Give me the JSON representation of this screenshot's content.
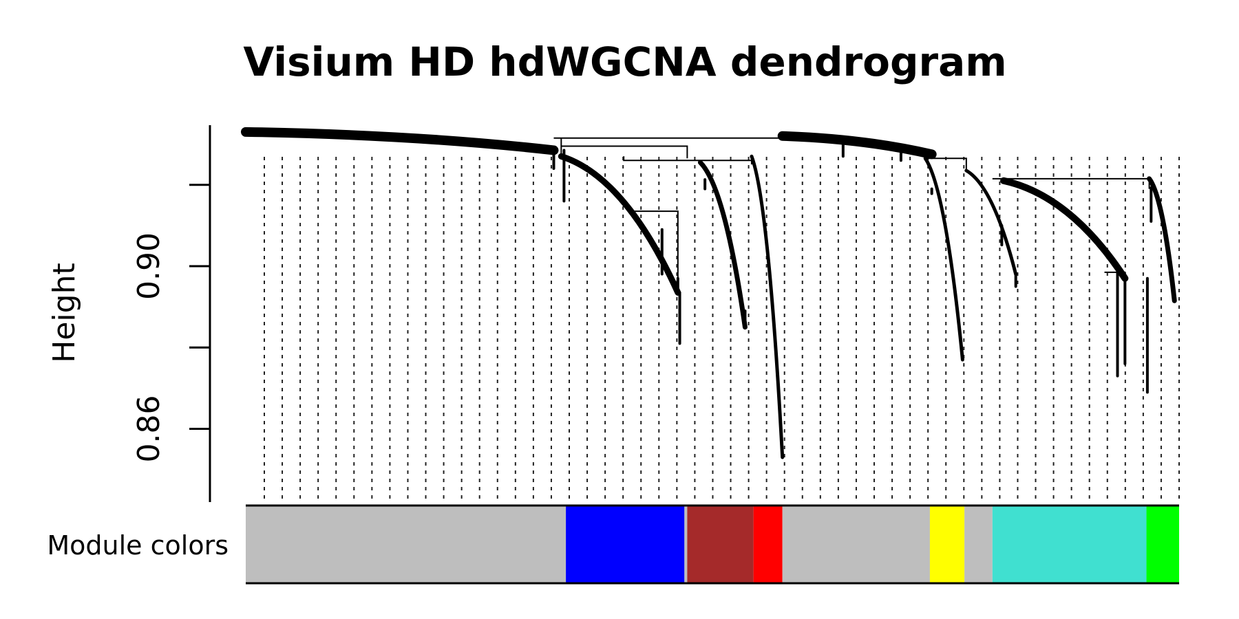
{
  "chart_data": {
    "type": "dendrogram",
    "title": "Visium HD hdWGCNA dendrogram",
    "ylabel": "Height",
    "row_label": "Module colors",
    "ylim": [
      0.842,
      0.935
    ],
    "y_ticks": [
      0.86,
      0.88,
      0.9,
      0.92
    ],
    "y_tick_labels": [
      "0.86",
      "",
      "0.90",
      ""
    ],
    "leaf_guides": {
      "style": "dotted",
      "count": 52
    },
    "root_height": 0.9315,
    "branches": [
      {
        "x_start": 0.0,
        "x_end": 0.33,
        "h_start": 0.933,
        "h_end": 0.9285,
        "width": 14,
        "ends": [
          [
            0.33,
            0.924
          ],
          [
            0.341,
            0.916
          ]
        ]
      },
      {
        "x_start": 0.338,
        "x_end": 0.463,
        "h_start": 0.927,
        "h_end": 0.8935,
        "width": 9,
        "ends": [
          [
            0.446,
            0.909
          ],
          [
            0.463,
            0.897
          ],
          [
            0.465,
            0.881
          ]
        ]
      },
      {
        "x_start": 0.487,
        "x_end": 0.535,
        "h_start": 0.9255,
        "h_end": 0.885,
        "width": 7,
        "ends": [
          [
            0.492,
            0.919
          ],
          [
            0.535,
            0.889
          ]
        ]
      },
      {
        "x_start": 0.542,
        "x_end": 0.575,
        "h_start": 0.927,
        "h_end": 0.853,
        "width": 5,
        "ends": [
          [
            0.575,
            0.853
          ]
        ]
      },
      {
        "x_start": 0.575,
        "x_end": 0.735,
        "h_start": 0.932,
        "h_end": 0.9275,
        "width": 14,
        "ends": [
          [
            0.64,
            0.927
          ],
          [
            0.702,
            0.926
          ]
        ]
      },
      {
        "x_start": 0.728,
        "x_end": 0.768,
        "h_start": 0.9265,
        "h_end": 0.877,
        "width": 5,
        "ends": [
          [
            0.735,
            0.919
          ],
          [
            0.768,
            0.877
          ]
        ]
      },
      {
        "x_start": 0.772,
        "x_end": 0.825,
        "h_start": 0.9235,
        "h_end": 0.898,
        "width": 5,
        "ends": [
          [
            0.81,
            0.91
          ],
          [
            0.825,
            0.895
          ]
        ]
      },
      {
        "x_start": 0.812,
        "x_end": 0.942,
        "h_start": 0.921,
        "h_end": 0.897,
        "width": 10,
        "ends": [
          [
            0.942,
            0.876
          ],
          [
            0.934,
            0.873
          ],
          [
            0.966,
            0.869
          ]
        ]
      },
      {
        "x_start": 0.968,
        "x_end": 0.995,
        "h_start": 0.9215,
        "h_end": 0.8915,
        "width": 7,
        "ends": [
          [
            0.995,
            0.893
          ],
          [
            0.97,
            0.911
          ]
        ]
      }
    ],
    "module_segments": [
      {
        "color": "#BEBEBE",
        "start": 0.0,
        "end": 0.343
      },
      {
        "color": "#0000FF",
        "start": 0.343,
        "end": 0.47
      },
      {
        "color": "#BEBEBE",
        "start": 0.47,
        "end": 0.473
      },
      {
        "color": "#A52A2A",
        "start": 0.473,
        "end": 0.544
      },
      {
        "color": "#FF0000",
        "start": 0.544,
        "end": 0.575
      },
      {
        "color": "#BEBEBE",
        "start": 0.575,
        "end": 0.733
      },
      {
        "color": "#FFFF00",
        "start": 0.733,
        "end": 0.77
      },
      {
        "color": "#BEBEBE",
        "start": 0.77,
        "end": 0.8
      },
      {
        "color": "#40E0D0",
        "start": 0.8,
        "end": 0.965
      },
      {
        "color": "#00FF00",
        "start": 0.965,
        "end": 1.0
      }
    ]
  }
}
